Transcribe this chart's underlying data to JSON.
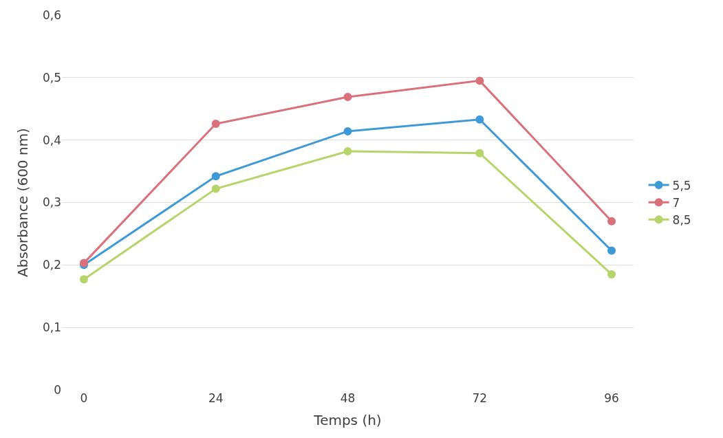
{
  "chart_data": {
    "type": "line",
    "xlabel": "Temps (h)",
    "ylabel": "Absorbance (600 nm)",
    "x": [
      0,
      24,
      48,
      72,
      96
    ],
    "series": [
      {
        "name": "5,5",
        "color": "#3e9ad6",
        "values": [
          0.2,
          0.342,
          0.414,
          0.433,
          0.223
        ]
      },
      {
        "name": "7",
        "color": "#d9707a",
        "values": [
          0.203,
          0.426,
          0.469,
          0.495,
          0.27
        ]
      },
      {
        "name": "8,5",
        "color": "#b5d56a",
        "values": [
          0.177,
          0.322,
          0.382,
          0.379,
          0.185
        ]
      }
    ],
    "xlim": [
      -4,
      100
    ],
    "xticks": [
      0,
      24,
      48,
      72,
      96
    ],
    "ylim": [
      0,
      0.6
    ],
    "yticks": [
      {
        "value": 0,
        "label": "0"
      },
      {
        "value": 0.1,
        "label": "0,1"
      },
      {
        "value": 0.2,
        "label": "0,2"
      },
      {
        "value": 0.3,
        "label": "0,3"
      },
      {
        "value": 0.4,
        "label": "0,4"
      },
      {
        "value": 0.5,
        "label": "0,5"
      },
      {
        "value": 0.6,
        "label": "0,6"
      }
    ],
    "grid": "y",
    "legend": "right",
    "marker": "circle",
    "line_style": "solid"
  }
}
